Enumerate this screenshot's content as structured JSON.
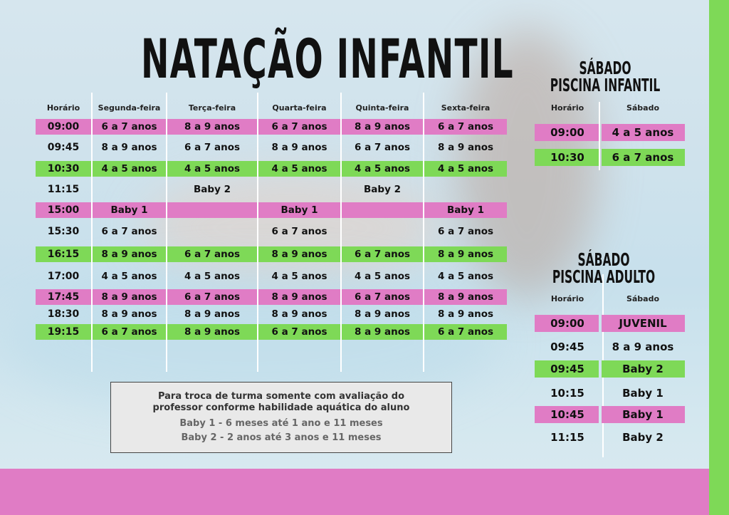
{
  "title": "NATAÇÃO INFANTIL",
  "colors": {
    "pink": "#e07cc5",
    "green": "#7ed957"
  },
  "main_table": {
    "headers": [
      "Horário",
      "Segunda-feira",
      "Terça-feira",
      "Quarta-feira",
      "Quinta-feira",
      "Sexta-feira"
    ],
    "rows": [
      {
        "highlight": "pink",
        "cells": [
          "09:00",
          "6 a 7 anos",
          "8 a 9 anos",
          "6 a 7 anos",
          "8 a 9 anos",
          "6 a 7 anos"
        ]
      },
      {
        "highlight": "none",
        "cells": [
          "09:45",
          "8 a 9 anos",
          "6 a 7 anos",
          "8 a 9 anos",
          "6 a 7 anos",
          "8 a 9 anos"
        ]
      },
      {
        "highlight": "green",
        "cells": [
          "10:30",
          "4 a 5 anos",
          "4 a 5 anos",
          "4 a 5 anos",
          "4 a 5 anos",
          "4 a 5 anos"
        ]
      },
      {
        "highlight": "none",
        "cells": [
          "11:15",
          "",
          "Baby 2",
          "",
          "Baby 2",
          ""
        ]
      },
      {
        "highlight": "pink",
        "cells": [
          "15:00",
          "Baby 1",
          "",
          "Baby 1",
          "",
          "Baby 1"
        ]
      },
      {
        "highlight": "none",
        "cells": [
          "15:30",
          "6 a 7 anos",
          "",
          "6 a 7 anos",
          "",
          "6 a 7 anos"
        ]
      },
      {
        "highlight": "green",
        "cells": [
          "16:15",
          "8 a 9 anos",
          "6 a 7 anos",
          "8 a 9 anos",
          "6 a 7 anos",
          "8 a 9 anos"
        ]
      },
      {
        "highlight": "none",
        "cells": [
          "17:00",
          "4 a 5 anos",
          "4 a 5 anos",
          "4 a 5 anos",
          "4 a 5 anos",
          "4 a 5 anos"
        ]
      },
      {
        "highlight": "pink",
        "cells": [
          "17:45",
          "8 a 9 anos",
          "6 a 7 anos",
          "8 a 9 anos",
          "6 a 7 anos",
          "8 a 9 anos"
        ]
      },
      {
        "highlight": "none",
        "cells": [
          "18:30",
          "8 a 9 anos",
          "8 a 9 anos",
          "8 a 9 anos",
          "8 a 9 anos",
          "8 a 9 anos"
        ]
      },
      {
        "highlight": "green",
        "cells": [
          "19:15",
          "6 a 7 anos",
          "8 a 9 anos",
          "6 a 7 anos",
          "8 a 9 anos",
          "6 a 7 anos"
        ]
      }
    ]
  },
  "saturday_kids": {
    "title_line1": "SÁBADO",
    "title_line2": "PISCINA INFANTIL",
    "headers": [
      "Horário",
      "Sábado"
    ],
    "rows": [
      {
        "highlight": "pink",
        "cells": [
          "09:00",
          "4 a 5 anos"
        ]
      },
      {
        "highlight": "green",
        "cells": [
          "10:30",
          "6 a 7 anos"
        ]
      }
    ]
  },
  "saturday_adult": {
    "title_line1": "SÁBADO",
    "title_line2": "PISCINA ADULTO",
    "headers": [
      "Horário",
      "Sábado"
    ],
    "rows": [
      {
        "highlight": "pink",
        "cells": [
          "09:00",
          "JUVENIL"
        ]
      },
      {
        "highlight": "none",
        "cells": [
          "09:45",
          "8 a 9 anos"
        ]
      },
      {
        "highlight": "green",
        "cells": [
          "09:45",
          "Baby 2"
        ]
      },
      {
        "highlight": "none",
        "cells": [
          "10:15",
          "Baby 1"
        ]
      },
      {
        "highlight": "pink",
        "cells": [
          "10:45",
          "Baby 1"
        ]
      },
      {
        "highlight": "none",
        "cells": [
          "11:15",
          "Baby 2"
        ]
      }
    ]
  },
  "note": {
    "line1": "Para troca de turma somente com avaliação do",
    "line2": "professor conforme habilidade aquática do aluno",
    "line3": "Baby 1 - 6 meses até 1 ano e 11 meses",
    "line4": "Baby 2 - 2 anos até 3 anos e 11 meses"
  }
}
